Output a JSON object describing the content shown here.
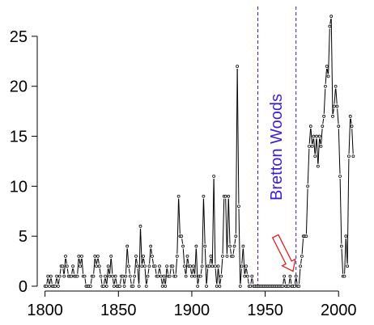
{
  "chart_data": {
    "type": "line",
    "title": "",
    "xlabel": "",
    "ylabel": "",
    "xlim": [
      1798,
      2012
    ],
    "ylim": [
      0,
      27.5
    ],
    "x_ticks": [
      1800,
      1850,
      1900,
      1950,
      2000
    ],
    "y_ticks": [
      0,
      5,
      10,
      15,
      20,
      25
    ],
    "grid": false,
    "legend": "none",
    "colors": {
      "line": "#000000",
      "marker": "#000000",
      "vline": "#2a1fd6",
      "annotation_text": "#3a1ed6",
      "arrow": "#e02020"
    },
    "vertical_lines": [
      1945,
      1971
    ],
    "annotation": {
      "text": "Bretton Woods",
      "x": 1958
    },
    "arrow": {
      "from": [
        1957,
        5
      ],
      "to": [
        1969,
        1.5
      ]
    },
    "series": [
      {
        "x": [
          1800,
          1801,
          1802,
          1803,
          1804,
          1805,
          1806,
          1807,
          1808,
          1809,
          1810,
          1811,
          1812,
          1813,
          1814,
          1815,
          1816,
          1817,
          1818,
          1819,
          1820,
          1821,
          1822,
          1823,
          1824,
          1825,
          1826,
          1827,
          1828,
          1829,
          1830,
          1831,
          1832,
          1833,
          1834,
          1835,
          1836,
          1837,
          1838,
          1839,
          1840,
          1841,
          1842,
          1843,
          1844,
          1845,
          1846,
          1847,
          1848,
          1849,
          1850,
          1851,
          1852,
          1853,
          1854,
          1855,
          1856,
          1857,
          1858,
          1859,
          1860,
          1861,
          1862,
          1863,
          1864,
          1865,
          1866,
          1867,
          1868,
          1869,
          1870,
          1871,
          1872,
          1873,
          1874,
          1875,
          1876,
          1877,
          1878,
          1879,
          1880,
          1881,
          1882,
          1883,
          1884,
          1885,
          1886,
          1887,
          1888,
          1889,
          1890,
          1891,
          1892,
          1893,
          1894,
          1895,
          1896,
          1897,
          1898,
          1899,
          1900,
          1901,
          1902,
          1903,
          1904,
          1905,
          1906,
          1907,
          1908,
          1909,
          1910,
          1911,
          1912,
          1913,
          1914,
          1915,
          1916,
          1917,
          1918,
          1919,
          1920,
          1921,
          1922,
          1923,
          1924,
          1925,
          1926,
          1927,
          1928,
          1929,
          1930,
          1931,
          1932,
          1933,
          1934,
          1935,
          1936,
          1937,
          1938,
          1939,
          1940,
          1941,
          1942,
          1943,
          1944,
          1945,
          1946,
          1947,
          1948,
          1949,
          1950,
          1951,
          1952,
          1953,
          1954,
          1955,
          1956,
          1957,
          1958,
          1959,
          1960,
          1961,
          1962,
          1963,
          1964,
          1965,
          1966,
          1967,
          1968,
          1969,
          1970,
          1971,
          1972,
          1973,
          1974,
          1975,
          1976,
          1977,
          1978,
          1979,
          1980,
          1981,
          1982,
          1983,
          1984,
          1985,
          1986,
          1987,
          1988,
          1989,
          1990,
          1991,
          1992,
          1993,
          1994,
          1995,
          1996,
          1997,
          1998,
          1999,
          2000,
          2001,
          2002,
          2003,
          2004,
          2005,
          2006,
          2007,
          2008,
          2009,
          2010
        ],
        "values": [
          0,
          0,
          1,
          0,
          1,
          0,
          0,
          0,
          1,
          0,
          1,
          2,
          2,
          1,
          3,
          2,
          1,
          1,
          1,
          2,
          1,
          1,
          1,
          3,
          2,
          3,
          1,
          1,
          0,
          0,
          0,
          0,
          1,
          1,
          3,
          2,
          3,
          2,
          1,
          0,
          0,
          1,
          0,
          2,
          1,
          3,
          1,
          0,
          1,
          0,
          0,
          0,
          1,
          1,
          0,
          1,
          4,
          2,
          1,
          0,
          0,
          1,
          3,
          2,
          0,
          6,
          2,
          3,
          2,
          0,
          1,
          2,
          4,
          3,
          2,
          2,
          1,
          1,
          2,
          1,
          0,
          1,
          0,
          2,
          1,
          1,
          2,
          2,
          1,
          1,
          3,
          9,
          5,
          5,
          4,
          2,
          1,
          3,
          2,
          2,
          1,
          2,
          1,
          4,
          0,
          1,
          1,
          2,
          9,
          4,
          0,
          2,
          2,
          3,
          2,
          11,
          2,
          0,
          2,
          0,
          1,
          3,
          9,
          9,
          3,
          9,
          4,
          3,
          3,
          4,
          5,
          22,
          8,
          0,
          2,
          4,
          1,
          2,
          1,
          0,
          0,
          1,
          0,
          0,
          0,
          0,
          0,
          0,
          0,
          0,
          0,
          0,
          0,
          0,
          0,
          0,
          0,
          0,
          0,
          0,
          0,
          0,
          0,
          1,
          0,
          0,
          0,
          1,
          0,
          0,
          0,
          1,
          0,
          0,
          2,
          3,
          5,
          5,
          5,
          10,
          14,
          16,
          14,
          15,
          13,
          15,
          12,
          15,
          14,
          16,
          17,
          20,
          22,
          21,
          26,
          27,
          17,
          18,
          20,
          18,
          16,
          11,
          4,
          1,
          1,
          5,
          2,
          13,
          17,
          16,
          13
        ]
      }
    ]
  }
}
